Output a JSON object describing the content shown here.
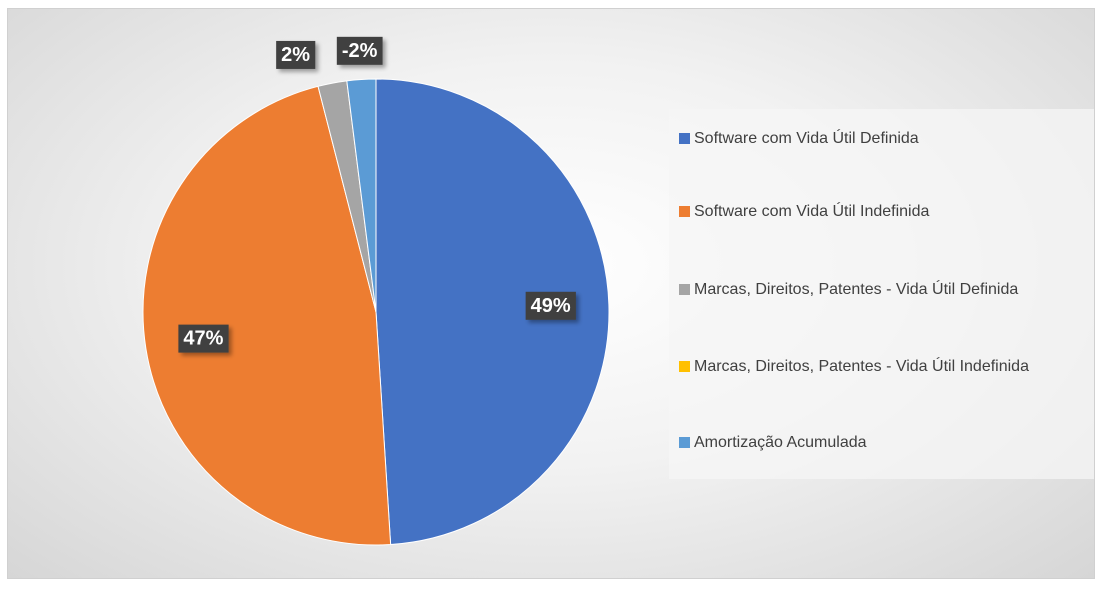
{
  "chart_data": {
    "type": "pie",
    "categories": [
      "Software com Vida Útil Definida",
      "Software com Vida Útil Indefinida",
      "Marcas, Direitos, Patentes - Vida Útil Definida",
      "Marcas, Direitos, Patentes - Vida Útil Indefinida",
      "Amortização Acumulada"
    ],
    "values": [
      49,
      47,
      2,
      0,
      -2
    ],
    "value_labels": [
      "49%",
      "47%",
      "2%",
      null,
      "-2%"
    ],
    "colors": [
      "#4472c4",
      "#ed7d31",
      "#a5a5a5",
      "#ffc000",
      "#5b9bd5"
    ],
    "legend": "right"
  }
}
